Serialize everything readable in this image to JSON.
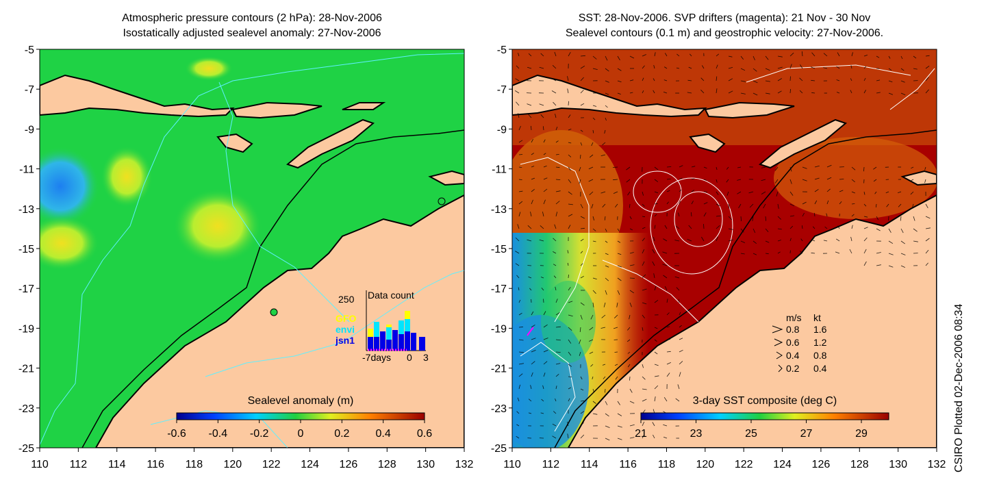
{
  "left_panel": {
    "title_line1": "Atmospheric pressure contours (2 hPa): 28-Nov-2006",
    "title_line2": "Isostatically adjusted sealevel anomaly: 27-Nov-2006",
    "colorbar_label": "Sealevel anomaly (m)",
    "colorbar_ticks": [
      "-0.6",
      "-0.4",
      "-0.2",
      "0",
      "0.2",
      "0.4",
      "0.6"
    ],
    "colors": {
      "ocean": "#1fd245",
      "land": "#fcc9a0",
      "low": "#2fa8f0",
      "high": "#cff033"
    },
    "inset": {
      "title": "Data count",
      "y_max_label": "250",
      "x_ticks": [
        "-7days",
        "0",
        "3"
      ],
      "legend": [
        {
          "label": "GFO",
          "color": "#ffff00"
        },
        {
          "label": "envi",
          "color": "#00e5ff"
        },
        {
          "label": "jsn1",
          "color": "#0000e6"
        }
      ]
    }
  },
  "right_panel": {
    "title_line1": "SST: 28-Nov-2006. SVP drifters (magenta): 21 Nov - 30 Nov",
    "title_line2": "Sealevel contours (0.1 m) and geostrophic velocity: 27-Nov-2006.",
    "colorbar_label": "3-day SST composite (deg C)",
    "colorbar_ticks": [
      "21",
      "23",
      "25",
      "27",
      "29"
    ],
    "colors": {
      "ocean": "#a80000",
      "mid": "#e0760e",
      "land": "#fcc9a0"
    },
    "velocity_legend": {
      "header_ms": "m/s",
      "header_kt": "kt",
      "rows": [
        {
          "ms": "0.8",
          "kt": "1.6"
        },
        {
          "ms": "0.6",
          "kt": "1.2"
        },
        {
          "ms": "0.4",
          "kt": "0.8"
        },
        {
          "ms": "0.2",
          "kt": "0.4"
        }
      ]
    }
  },
  "axes": {
    "y_ticks": [
      "-5",
      "-7",
      "-9",
      "-11",
      "-13",
      "-15",
      "-17",
      "-19",
      "-21",
      "-23",
      "-25"
    ],
    "x_ticks": [
      "110",
      "112",
      "114",
      "116",
      "118",
      "120",
      "122",
      "124",
      "126",
      "128",
      "130",
      "132"
    ]
  },
  "credit": "CSIRO Plotted 02-Dec-2006 08:34"
}
